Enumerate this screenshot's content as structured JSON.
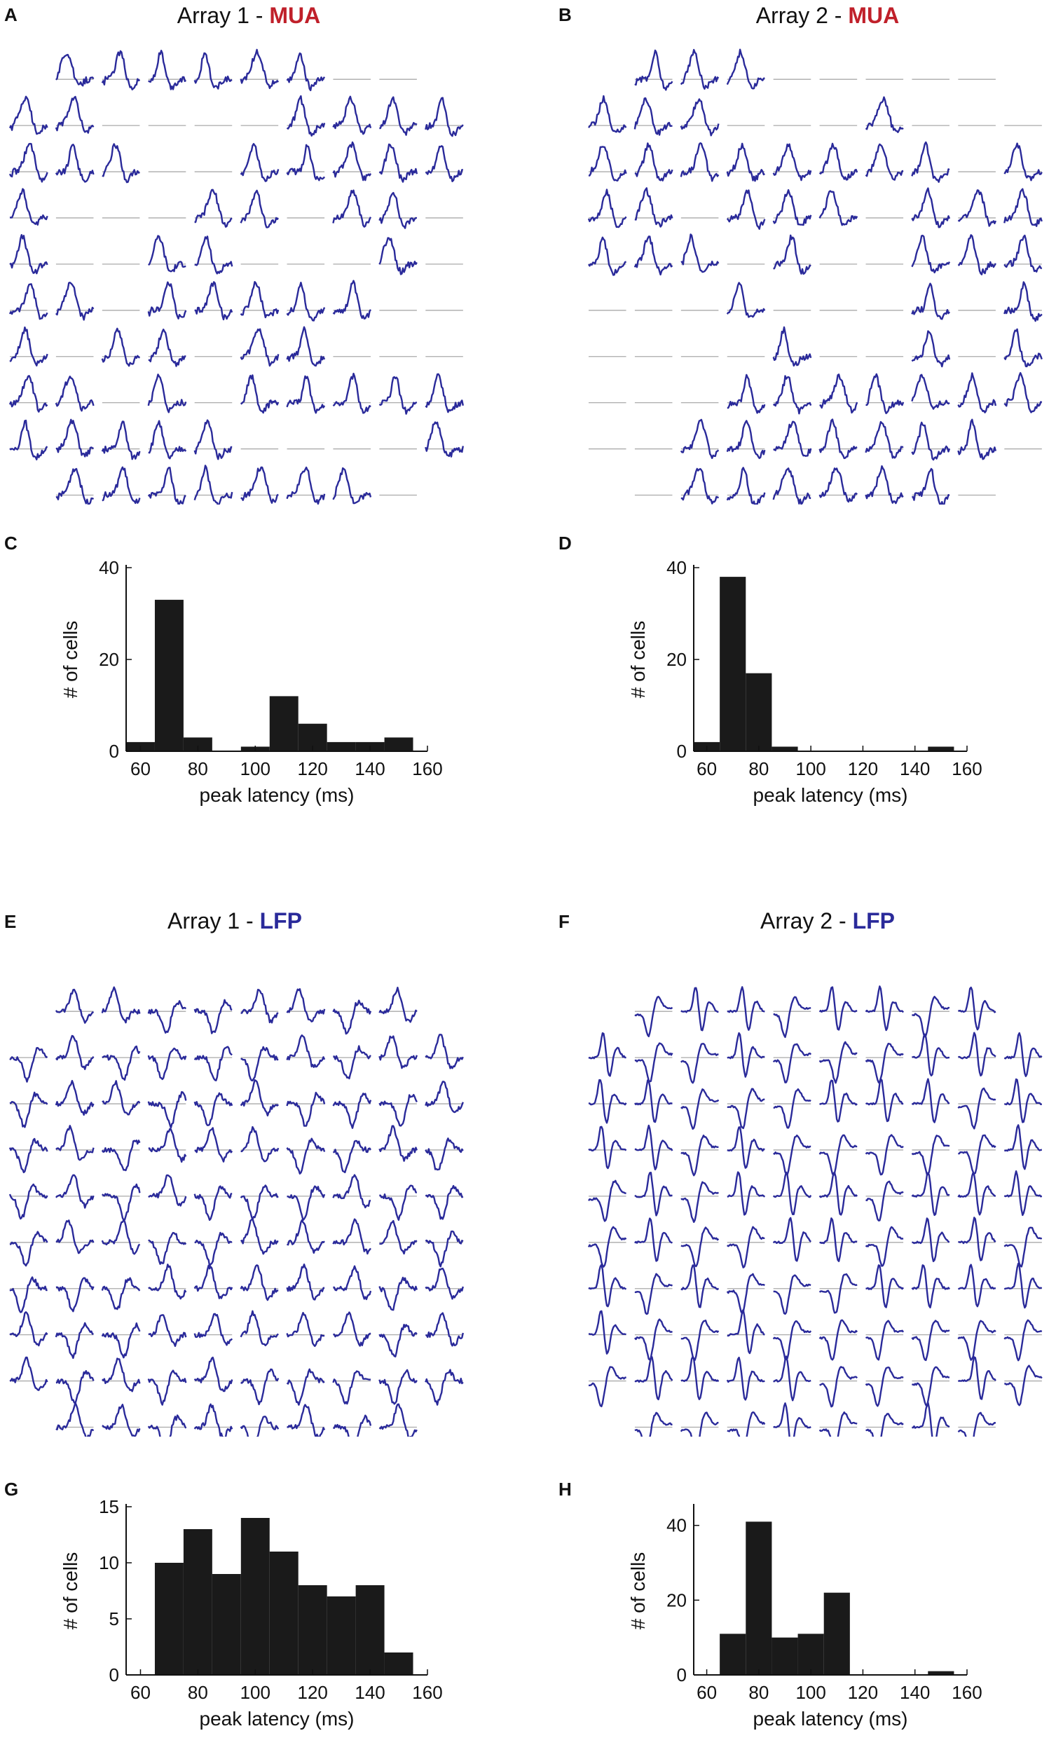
{
  "colors": {
    "trace": "#2a2a9a",
    "baseline": "#aaaaaa",
    "bar": "#1a1a1a",
    "mua_accent": "#c0202a",
    "lfp_accent": "#2a2a9a"
  },
  "panels": {
    "A": {
      "label": "A",
      "title_prefix": "Array 1 - ",
      "title_highlight": "MUA",
      "accent": "#c0202a"
    },
    "B": {
      "label": "B",
      "title_prefix": "Array 2 - ",
      "title_highlight": "MUA",
      "accent": "#c0202a"
    },
    "C": {
      "label": "C"
    },
    "D": {
      "label": "D"
    },
    "E": {
      "label": "E",
      "title_prefix": "Array 1 - ",
      "title_highlight": "LFP",
      "accent": "#2a2a9a"
    },
    "F": {
      "label": "F",
      "title_prefix": "Array 2 - ",
      "title_highlight": "LFP",
      "accent": "#2a2a9a"
    },
    "G": {
      "label": "G"
    },
    "H": {
      "label": "H"
    }
  },
  "grids": {
    "A": {
      "type": "mua",
      "rows": [
        "0mmmmmmbb0",
        "mmbbbbmmmm",
        "mmmbbmmmmm",
        "mbbbmmbmmb",
        "mbbmmbbbmb",
        "mmbmmmmmbb",
        "mbmmbmmbbb",
        "mmbmbmmmmm",
        "mmmmmbbbbm",
        "0mmmmmmmb0"
      ]
    },
    "B": {
      "type": "mua",
      "rows": [
        "0mmmbbbbb0",
        "mmmbbbmbbb",
        "mmmmmmmmbm",
        "mmbmmmbmmm",
        "mmmbmbbmmm",
        "bbbmbbbmbm",
        "bbbbmbbmbm",
        "bbbmmmmmmm",
        "bbmmmmmmmb",
        "0bmmmmmmb0"
      ]
    },
    "E": {
      "type": "lfp1",
      "rows": [
        "0llllllll0",
        "llllllllll",
        "llllllllll",
        "llllllllll",
        "llllllllll",
        "llllllllll",
        "llllllllll",
        "llllllllll",
        "llllllllll",
        "0llllllll0"
      ]
    },
    "F": {
      "type": "lfp2",
      "rows": [
        "0llllllll0",
        "llllllllll",
        "llllllllll",
        "llllllllll",
        "llllllllll",
        "llllllllll",
        "llllllllll",
        "llllllllll",
        "llllllllll",
        "0llllllll0"
      ]
    }
  },
  "chart_data": [
    {
      "panel": "C",
      "type": "bar",
      "bin_width": 10,
      "x": [
        60,
        70,
        80,
        90,
        100,
        110,
        120,
        130,
        140,
        150
      ],
      "values": [
        2,
        33,
        3,
        0,
        1,
        12,
        6,
        2,
        2,
        3
      ],
      "xlabel": "peak latency (ms)",
      "ylabel": "# of cells",
      "xticks": [
        60,
        80,
        100,
        120,
        140,
        160
      ],
      "yticks": [
        0,
        20,
        40
      ],
      "xlim": [
        55,
        160
      ],
      "ylim": [
        0,
        40
      ]
    },
    {
      "panel": "D",
      "type": "bar",
      "bin_width": 10,
      "x": [
        60,
        70,
        80,
        90,
        100,
        110,
        120,
        130,
        140,
        150
      ],
      "values": [
        2,
        38,
        17,
        1,
        0,
        0,
        0,
        0,
        0,
        1
      ],
      "xlabel": "peak latency (ms)",
      "ylabel": "# of cells",
      "xticks": [
        60,
        80,
        100,
        120,
        140,
        160
      ],
      "yticks": [
        0,
        20,
        40
      ],
      "xlim": [
        55,
        160
      ],
      "ylim": [
        0,
        40
      ]
    },
    {
      "panel": "G",
      "type": "bar",
      "bin_width": 10,
      "x": [
        70,
        80,
        90,
        100,
        110,
        120,
        130,
        140,
        150
      ],
      "values": [
        10,
        13,
        9,
        14,
        11,
        8,
        7,
        8,
        2
      ],
      "xlabel": "peak latency (ms)",
      "ylabel": "# of cells",
      "xticks": [
        60,
        80,
        100,
        120,
        140,
        160
      ],
      "yticks": [
        0,
        5,
        10,
        15
      ],
      "xlim": [
        55,
        160
      ],
      "ylim": [
        0,
        15
      ]
    },
    {
      "panel": "H",
      "type": "bar",
      "bin_width": 10,
      "x": [
        70,
        80,
        90,
        100,
        110,
        150
      ],
      "values": [
        11,
        41,
        10,
        11,
        22,
        1
      ],
      "xlabel": "peak latency (ms)",
      "ylabel": "# of cells",
      "xticks": [
        60,
        80,
        100,
        120,
        140,
        160
      ],
      "yticks": [
        0,
        20,
        40
      ],
      "xlim": [
        55,
        160
      ],
      "ylim": [
        0,
        45
      ]
    }
  ]
}
